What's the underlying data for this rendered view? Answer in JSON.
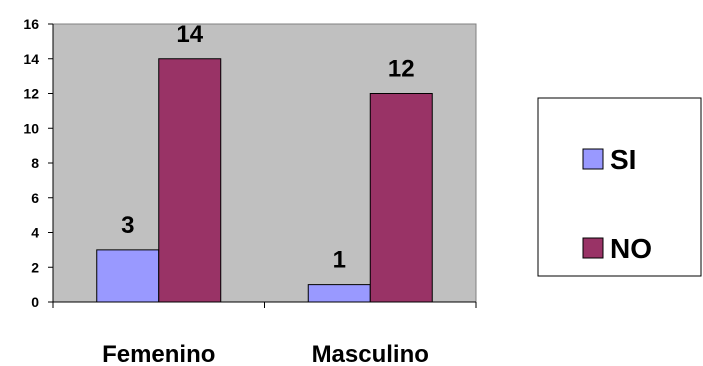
{
  "chart_data": {
    "type": "bar",
    "title": "",
    "xlabel": "",
    "ylabel": "",
    "categories": [
      "Femenino",
      "Masculino"
    ],
    "series": [
      {
        "name": "SI",
        "values": [
          3,
          1
        ],
        "color": "#9999ff"
      },
      {
        "name": "NO",
        "values": [
          14,
          12
        ],
        "color": "#993366"
      }
    ],
    "ylim": [
      0,
      16
    ],
    "yticks": [
      0,
      2,
      4,
      6,
      8,
      10,
      12,
      14,
      16
    ],
    "plot_background": "#c0c0c0",
    "grid": false,
    "legend_position": "right",
    "data_labels": true
  }
}
